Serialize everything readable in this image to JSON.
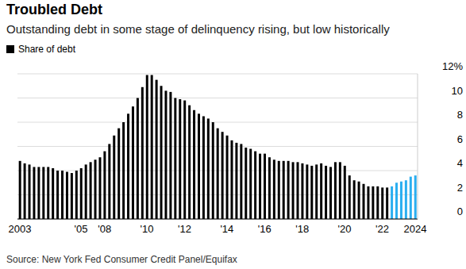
{
  "chart_data": {
    "type": "bar",
    "title": "Troubled Debt",
    "subtitle": "Outstanding debt in some stage of delinquency rising, but low historically",
    "source": "Source: New York Fed Consumer Credit Panel/Equifax",
    "legend": "top-left",
    "grid": true,
    "ylim": [
      0,
      12
    ],
    "yticks": [
      0,
      2,
      4,
      6,
      8,
      10,
      {
        "value": 12,
        "label": "12%"
      }
    ],
    "categories": [
      "2003",
      null,
      null,
      null,
      null,
      null,
      null,
      null,
      null,
      null,
      null,
      null,
      null,
      "'05",
      null,
      null,
      null,
      null,
      "'08",
      null,
      null,
      null,
      null,
      null,
      null,
      null,
      null,
      "'10",
      null,
      null,
      null,
      null,
      null,
      null,
      null,
      "'12",
      null,
      null,
      null,
      null,
      null,
      null,
      null,
      null,
      "'14",
      null,
      null,
      null,
      null,
      null,
      null,
      null,
      "'16",
      null,
      null,
      null,
      null,
      null,
      null,
      null,
      "'18",
      null,
      null,
      null,
      null,
      null,
      null,
      null,
      null,
      "'20",
      null,
      null,
      null,
      null,
      null,
      null,
      null,
      "'22",
      null,
      null,
      null,
      null,
      null,
      null,
      "2024"
    ],
    "series": [
      {
        "name": "Share of debt",
        "color": "#000000",
        "values": [
          4.8,
          4.6,
          4.5,
          4.3,
          4.3,
          4.3,
          4.3,
          4.2,
          4.0,
          4.0,
          3.9,
          3.8,
          4.0,
          4.2,
          4.5,
          4.7,
          4.9,
          5.1,
          5.6,
          6.2,
          6.9,
          7.5,
          8.0,
          8.7,
          9.3,
          10.0,
          10.9,
          11.9,
          11.9,
          11.5,
          11.0,
          10.6,
          10.5,
          10.0,
          9.9,
          9.8,
          9.4,
          9.0,
          8.7,
          8.5,
          8.3,
          8.0,
          7.5,
          7.2,
          6.9,
          6.5,
          6.3,
          6.2,
          5.9,
          5.8,
          5.6,
          5.4,
          5.4,
          5.1,
          4.9,
          4.8,
          4.8,
          4.8,
          4.7,
          4.7,
          4.6,
          4.5,
          4.4,
          4.5,
          4.6,
          4.4,
          4.3,
          4.7,
          4.7,
          4.4,
          3.6,
          3.2,
          3.1,
          2.9,
          2.7,
          2.7,
          2.7,
          2.6,
          2.6,
          2.7,
          3.0,
          3.1,
          3.2,
          3.5,
          3.6
        ],
        "colors": [
          "#000000",
          "#000000",
          "#000000",
          "#000000",
          "#000000",
          "#000000",
          "#000000",
          "#000000",
          "#000000",
          "#000000",
          "#000000",
          "#000000",
          "#000000",
          "#000000",
          "#000000",
          "#000000",
          "#000000",
          "#000000",
          "#000000",
          "#000000",
          "#000000",
          "#000000",
          "#000000",
          "#000000",
          "#000000",
          "#000000",
          "#000000",
          "#000000",
          "#000000",
          "#000000",
          "#000000",
          "#000000",
          "#000000",
          "#000000",
          "#000000",
          "#000000",
          "#000000",
          "#000000",
          "#000000",
          "#000000",
          "#000000",
          "#000000",
          "#000000",
          "#000000",
          "#000000",
          "#000000",
          "#000000",
          "#000000",
          "#000000",
          "#000000",
          "#000000",
          "#000000",
          "#000000",
          "#000000",
          "#000000",
          "#000000",
          "#000000",
          "#000000",
          "#000000",
          "#000000",
          "#000000",
          "#000000",
          "#000000",
          "#000000",
          "#000000",
          "#000000",
          "#000000",
          "#000000",
          "#000000",
          "#000000",
          "#000000",
          "#000000",
          "#000000",
          "#000000",
          "#000000",
          "#000000",
          "#000000",
          "#000000",
          "#000000",
          "#2aaef0",
          "#2aaef0",
          "#2aaef0",
          "#2aaef0",
          "#2aaef0",
          "#2aaef0"
        ]
      }
    ]
  }
}
